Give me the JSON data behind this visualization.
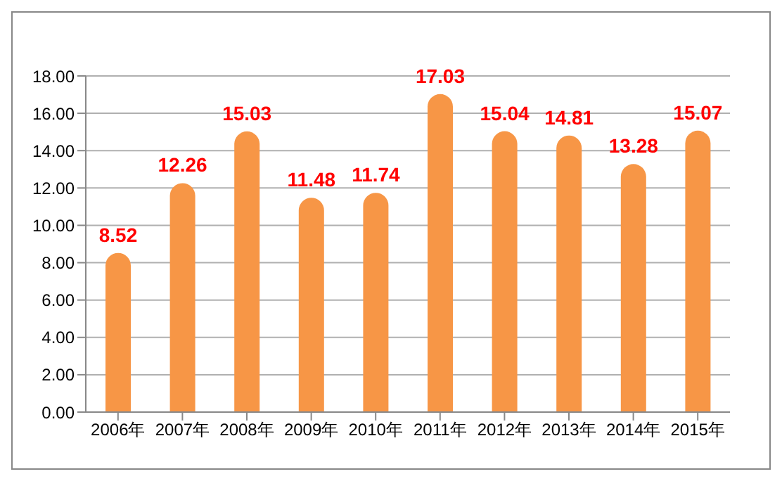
{
  "chart_data": {
    "type": "bar",
    "categories": [
      "2006年",
      "2007年",
      "2008年",
      "2009年",
      "2010年",
      "2011年",
      "2012年",
      "2013年",
      "2014年",
      "2015年"
    ],
    "values": [
      8.52,
      12.26,
      15.03,
      11.48,
      11.74,
      17.03,
      15.04,
      14.81,
      13.28,
      15.07
    ],
    "color": "#f79646",
    "data_labels": true,
    "grid": "y",
    "ylim": [
      0,
      18
    ],
    "yticks": [
      {
        "value": 0,
        "label": "0.00"
      },
      {
        "value": 2,
        "label": "2.00"
      },
      {
        "value": 4,
        "label": "4.00"
      },
      {
        "value": 6,
        "label": "6.00"
      },
      {
        "value": 8,
        "label": "8.00"
      },
      {
        "value": 10,
        "label": "10.00"
      },
      {
        "value": 12,
        "label": "12.00"
      },
      {
        "value": 14,
        "label": "14.00"
      },
      {
        "value": 16,
        "label": "16.00"
      },
      {
        "value": 18,
        "label": "18.00"
      }
    ]
  }
}
